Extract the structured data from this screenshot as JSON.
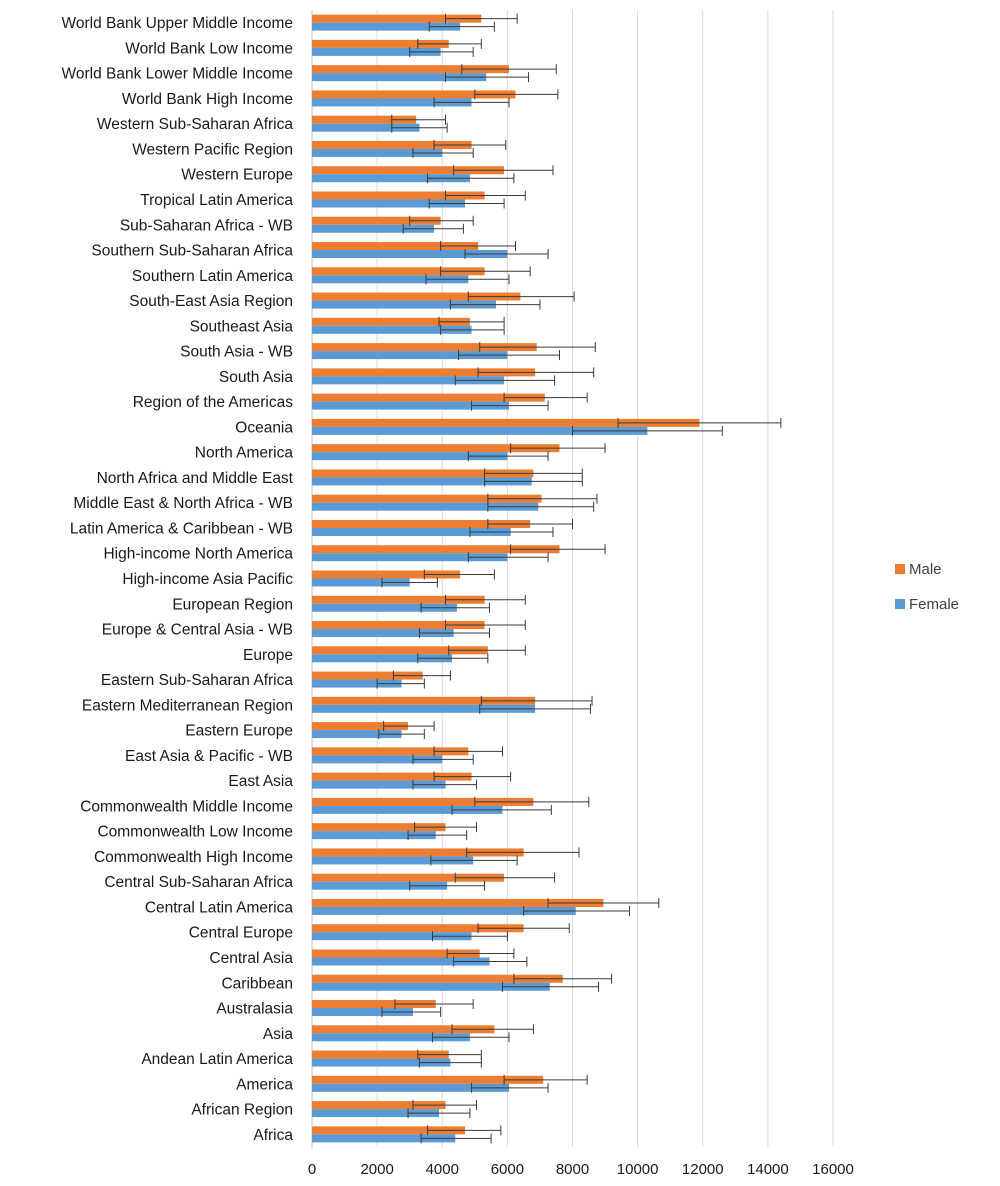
{
  "chart_data": {
    "type": "bar",
    "orientation": "horizontal",
    "title": "",
    "xlabel": "",
    "ylabel": "",
    "xlim": [
      0,
      16000
    ],
    "x_ticks": [
      0,
      2000,
      4000,
      6000,
      8000,
      10000,
      12000,
      14000,
      16000
    ],
    "x_tick_labels": [
      "0",
      "2000",
      "4000",
      "6000",
      "8000",
      "10000",
      "12000",
      "14000",
      "16000"
    ],
    "grid": "vertical",
    "legend": "right",
    "categories": [
      "World Bank Upper Middle Income",
      "World Bank Low Income",
      "World Bank Lower Middle Income",
      "World Bank High Income",
      "Western Sub-Saharan Africa",
      "Western Pacific Region",
      "Western Europe",
      "Tropical Latin America",
      "Sub-Saharan Africa - WB",
      "Southern Sub-Saharan Africa",
      "Southern Latin America",
      "South-East Asia Region",
      "Southeast Asia",
      "South Asia - WB",
      "South Asia",
      "Region of the Americas",
      "Oceania",
      "North America",
      "North Africa and Middle East",
      "Middle East & North Africa - WB",
      "Latin America & Caribbean - WB",
      "High-income North America",
      "High-income Asia Pacific",
      "European Region",
      "Europe & Central Asia - WB",
      "Europe",
      "Eastern Sub-Saharan Africa",
      "Eastern Mediterranean Region",
      "Eastern Europe",
      "East Asia & Pacific - WB",
      "East Asia",
      "Commonwealth Middle Income",
      "Commonwealth Low Income",
      "Commonwealth High Income",
      "Central Sub-Saharan Africa",
      "Central Latin America",
      "Central Europe",
      "Central Asia",
      "Caribbean",
      "Australasia",
      "Asia",
      "Andean Latin America",
      "America",
      "African Region",
      "Africa"
    ],
    "series": [
      {
        "name": "Male",
        "color": "#ED7D31",
        "values": [
          5200,
          4200,
          6050,
          6250,
          3200,
          4900,
          5900,
          5300,
          3950,
          5100,
          5300,
          6400,
          4850,
          6900,
          6850,
          7150,
          11900,
          7600,
          6800,
          7050,
          6700,
          7600,
          4550,
          5300,
          5300,
          5400,
          3400,
          6850,
          2950,
          4800,
          4900,
          6800,
          4100,
          6500,
          5900,
          8950,
          6500,
          5150,
          7700,
          3800,
          5600,
          4200,
          7100,
          4100,
          4700
        ],
        "err_minus": [
          1100,
          950,
          1450,
          1250,
          750,
          1150,
          1550,
          1200,
          950,
          1150,
          1350,
          1600,
          950,
          1750,
          1750,
          1250,
          2500,
          1500,
          1500,
          1650,
          1300,
          1500,
          1100,
          1200,
          1200,
          1200,
          900,
          1650,
          750,
          1050,
          1150,
          1800,
          950,
          1750,
          1500,
          1700,
          1400,
          1000,
          1500,
          1250,
          1300,
          950,
          1200,
          1000,
          1150
        ],
        "err_plus": [
          1100,
          1000,
          1450,
          1300,
          900,
          1050,
          1500,
          1250,
          1000,
          1150,
          1400,
          1650,
          1050,
          1800,
          1800,
          1300,
          2500,
          1400,
          1500,
          1700,
          1300,
          1400,
          1050,
          1250,
          1250,
          1150,
          850,
          1750,
          800,
          1050,
          1200,
          1700,
          950,
          1700,
          1550,
          1700,
          1400,
          1050,
          1500,
          1150,
          1200,
          1000,
          1350,
          950,
          1100
        ]
      },
      {
        "name": "Female",
        "color": "#5B9BD5",
        "values": [
          4550,
          3950,
          5350,
          4900,
          3300,
          4000,
          4850,
          4700,
          3750,
          6000,
          4800,
          5650,
          4900,
          6000,
          5900,
          6050,
          10300,
          6000,
          6750,
          6950,
          6100,
          6000,
          3000,
          4450,
          4350,
          4300,
          2750,
          6850,
          2750,
          4000,
          4100,
          5850,
          3800,
          4950,
          4150,
          8100,
          4900,
          5450,
          7300,
          3100,
          4850,
          4250,
          6050,
          3900,
          4400
        ],
        "err_minus": [
          950,
          950,
          1250,
          1150,
          850,
          900,
          1300,
          1100,
          950,
          1300,
          1300,
          1400,
          950,
          1500,
          1500,
          1150,
          2300,
          1200,
          1450,
          1550,
          1250,
          1200,
          850,
          1100,
          1050,
          1050,
          750,
          1700,
          700,
          900,
          1000,
          1550,
          850,
          1300,
          1150,
          1600,
          1200,
          1100,
          1450,
          950,
          1150,
          950,
          1150,
          950,
          1050
        ],
        "err_plus": [
          1050,
          1000,
          1300,
          1150,
          850,
          950,
          1350,
          1200,
          900,
          1250,
          1250,
          1350,
          1000,
          1600,
          1550,
          1200,
          2300,
          1250,
          1550,
          1700,
          1300,
          1250,
          850,
          1000,
          1100,
          1100,
          700,
          1700,
          700,
          950,
          950,
          1500,
          950,
          1350,
          1150,
          1650,
          1100,
          1150,
          1500,
          850,
          1200,
          950,
          1200,
          950,
          1100
        ]
      }
    ]
  }
}
